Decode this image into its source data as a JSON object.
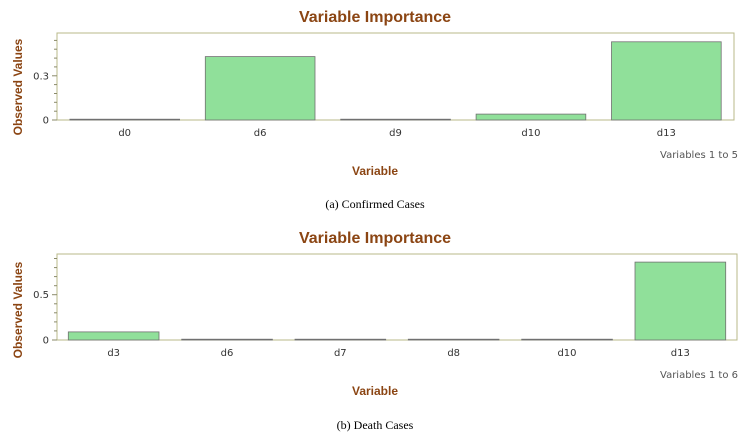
{
  "chart_data": [
    {
      "type": "bar",
      "title": "Variable Importance",
      "xlabel": "Variable",
      "ylabel": "Observed Values",
      "categories": [
        "d0",
        "d6",
        "d9",
        "d10",
        "d13"
      ],
      "values": [
        0.005,
        0.43,
        0.002,
        0.04,
        0.53
      ],
      "ylim": [
        0,
        0.59
      ],
      "yticks": [
        "0",
        "0.3"
      ],
      "ytick_values": [
        0,
        0.3
      ],
      "note": "Variables 1 to 5",
      "caption": "(a) Confirmed Cases",
      "bar_color": "#90e09a"
    },
    {
      "type": "bar",
      "title": "Variable Importance",
      "xlabel": "Variable",
      "ylabel": "Observed Values",
      "categories": [
        "d3",
        "d6",
        "d7",
        "d8",
        "d10",
        "d13"
      ],
      "values": [
        0.09,
        0.005,
        0.002,
        0.005,
        0.002,
        0.86
      ],
      "ylim": [
        0,
        0.95
      ],
      "yticks": [
        "0",
        "0.5"
      ],
      "ytick_values": [
        0,
        0.5
      ],
      "note": "Variables 1 to 6",
      "caption": "(b) Death Cases",
      "bar_color": "#90e09a"
    }
  ]
}
